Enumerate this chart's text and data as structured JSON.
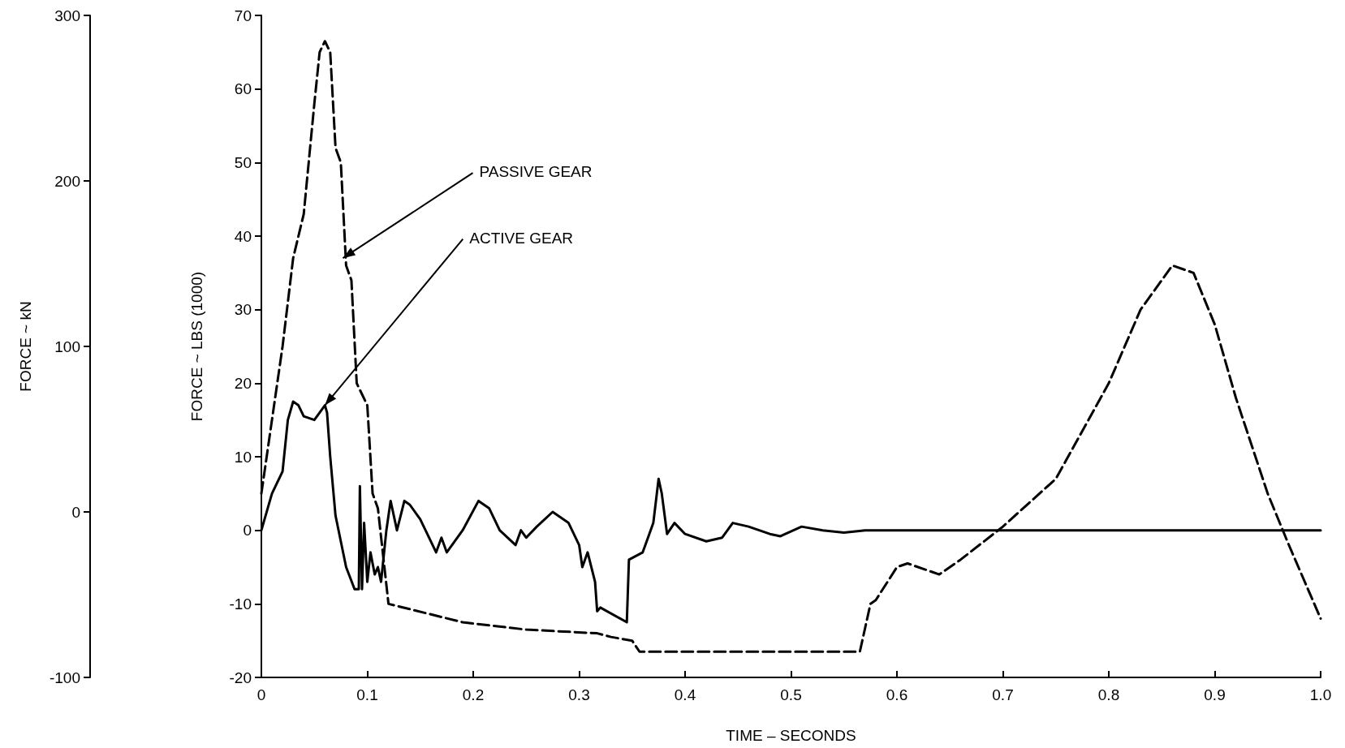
{
  "chart_data": {
    "type": "line",
    "xlabel": "TIME – SECONDS",
    "ylabel": "FORCE ~ LBS (1000)",
    "y2label": "FORCE ~ kN",
    "xlim": [
      0,
      1
    ],
    "xticks": [
      0,
      0.1,
      0.2,
      0.3,
      0.4,
      0.5,
      0.6,
      0.7,
      0.8,
      0.9,
      {
        "value": 1,
        "label": "1.0"
      }
    ],
    "ylim": [
      -20,
      70
    ],
    "yticks": [
      -20,
      -10,
      0,
      10,
      20,
      30,
      40,
      50,
      60,
      70
    ],
    "y2lim": [
      -100,
      300
    ],
    "y2ticks": [
      -100,
      0,
      100,
      200,
      300
    ],
    "marker": "none",
    "annotations": [
      {
        "text": "PASSIVE GEAR",
        "x": 0.077,
        "y": 37
      },
      {
        "text": "ACTIVE GEAR",
        "x": 0.06,
        "y": 17
      }
    ],
    "series": [
      {
        "color": "#000000",
        "line_style": "dashed",
        "x": [
          0,
          0.005,
          0.02,
          0.03,
          0.04,
          0.05,
          0.055,
          0.06,
          0.065,
          0.07,
          0.075,
          0.08,
          0.085,
          0.09,
          0.1,
          0.105,
          0.11,
          0.12,
          0.19,
          0.25,
          0.317,
          0.33,
          0.35,
          0.357,
          0.565,
          0.575,
          0.58,
          0.6,
          0.61,
          0.64,
          0.66,
          0.7,
          0.75,
          0.8,
          0.83,
          0.86,
          0.88,
          0.9,
          0.92,
          0.95,
          0.97,
          1.0
        ],
        "values": [
          5,
          10,
          25,
          37,
          43,
          58,
          65,
          66.5,
          65,
          52,
          50,
          36,
          34,
          20,
          17,
          5,
          3,
          -10,
          -12.5,
          -13.5,
          -14,
          -14.5,
          -15,
          -16.5,
          -16.5,
          -10,
          -9.5,
          -5,
          -4.5,
          -6,
          -4,
          0.5,
          7,
          20,
          30,
          36,
          35,
          28,
          18,
          5,
          -2,
          -12
        ]
      },
      {
        "color": "#000000",
        "line_style": "solid",
        "x": [
          0,
          0.01,
          0.02,
          0.025,
          0.03,
          0.035,
          0.04,
          0.05,
          0.06,
          0.062,
          0.065,
          0.07,
          0.08,
          0.088,
          0.092,
          0.093,
          0.095,
          0.097,
          0.1,
          0.103,
          0.107,
          0.11,
          0.113,
          0.118,
          0.122,
          0.128,
          0.135,
          0.14,
          0.15,
          0.165,
          0.17,
          0.175,
          0.19,
          0.205,
          0.215,
          0.225,
          0.24,
          0.245,
          0.25,
          0.26,
          0.275,
          0.29,
          0.3,
          0.303,
          0.308,
          0.315,
          0.317,
          0.32,
          0.345,
          0.347,
          0.36,
          0.365,
          0.37,
          0.375,
          0.378,
          0.383,
          0.39,
          0.4,
          0.42,
          0.435,
          0.445,
          0.46,
          0.48,
          0.49,
          0.51,
          0.53,
          0.55,
          0.57,
          0.6,
          1.0
        ],
        "values": [
          0,
          5,
          8,
          15,
          17.5,
          17,
          15.5,
          15,
          17,
          16,
          10,
          2,
          -5,
          -8,
          -8,
          6,
          -8,
          1,
          -7,
          -3,
          -6,
          -5,
          -7,
          0,
          4,
          0,
          4,
          3.5,
          1.5,
          -3,
          -1,
          -3,
          0,
          4,
          3,
          0,
          -2,
          0,
          -1,
          0.5,
          2.5,
          1,
          -2,
          -5,
          -3,
          -7,
          -11,
          -10.5,
          -12.5,
          -4,
          -3,
          -1,
          1,
          7,
          5,
          -0.5,
          1,
          -0.5,
          -1.5,
          -1,
          1,
          0.5,
          -0.5,
          -0.8,
          0.5,
          0,
          -0.3,
          0,
          0,
          0
        ]
      }
    ]
  }
}
